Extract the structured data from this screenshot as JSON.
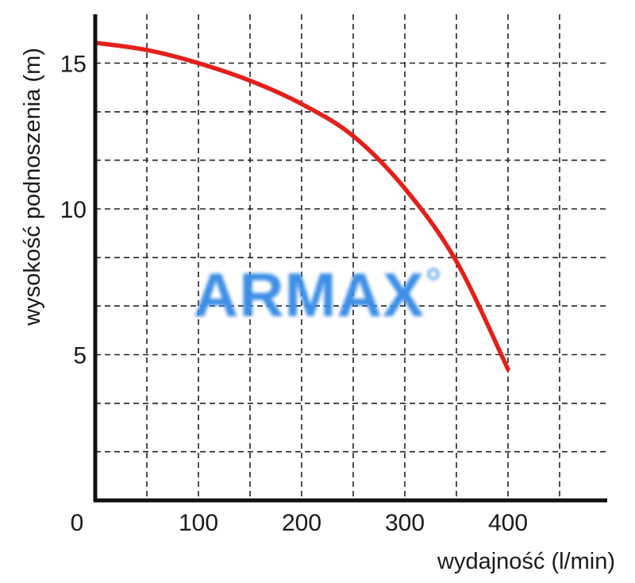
{
  "chart_data": {
    "type": "line",
    "title": "",
    "xlabel": "wydajność (l/min)",
    "ylabel": "wysokość podnoszenia (m)",
    "xlim": [
      0,
      500
    ],
    "ylim": [
      0,
      16.5
    ],
    "x_ticks": [
      0,
      100,
      200,
      300,
      400
    ],
    "x_tick_labels": [
      "0",
      "100",
      "200",
      "300",
      "400"
    ],
    "y_ticks": [
      5,
      10,
      15
    ],
    "y_tick_labels": [
      "5",
      "10",
      "15"
    ],
    "x_grid": [
      50,
      100,
      150,
      200,
      250,
      300,
      350,
      400,
      450
    ],
    "y_grid": [
      1.67,
      3.33,
      5,
      6.67,
      8.33,
      10,
      11.67,
      13.33,
      15
    ],
    "grid": true,
    "grid_style": "dashed",
    "line_color": "#e3201b",
    "series": [
      {
        "x": [
          0,
          50,
          100,
          150,
          200,
          250,
          300,
          350,
          400
        ],
        "y": [
          15.7,
          15.45,
          15.0,
          14.4,
          13.6,
          12.5,
          10.7,
          8.2,
          4.5
        ]
      }
    ],
    "watermark": "ARMAX",
    "watermark_color": "#3d8ee6"
  }
}
